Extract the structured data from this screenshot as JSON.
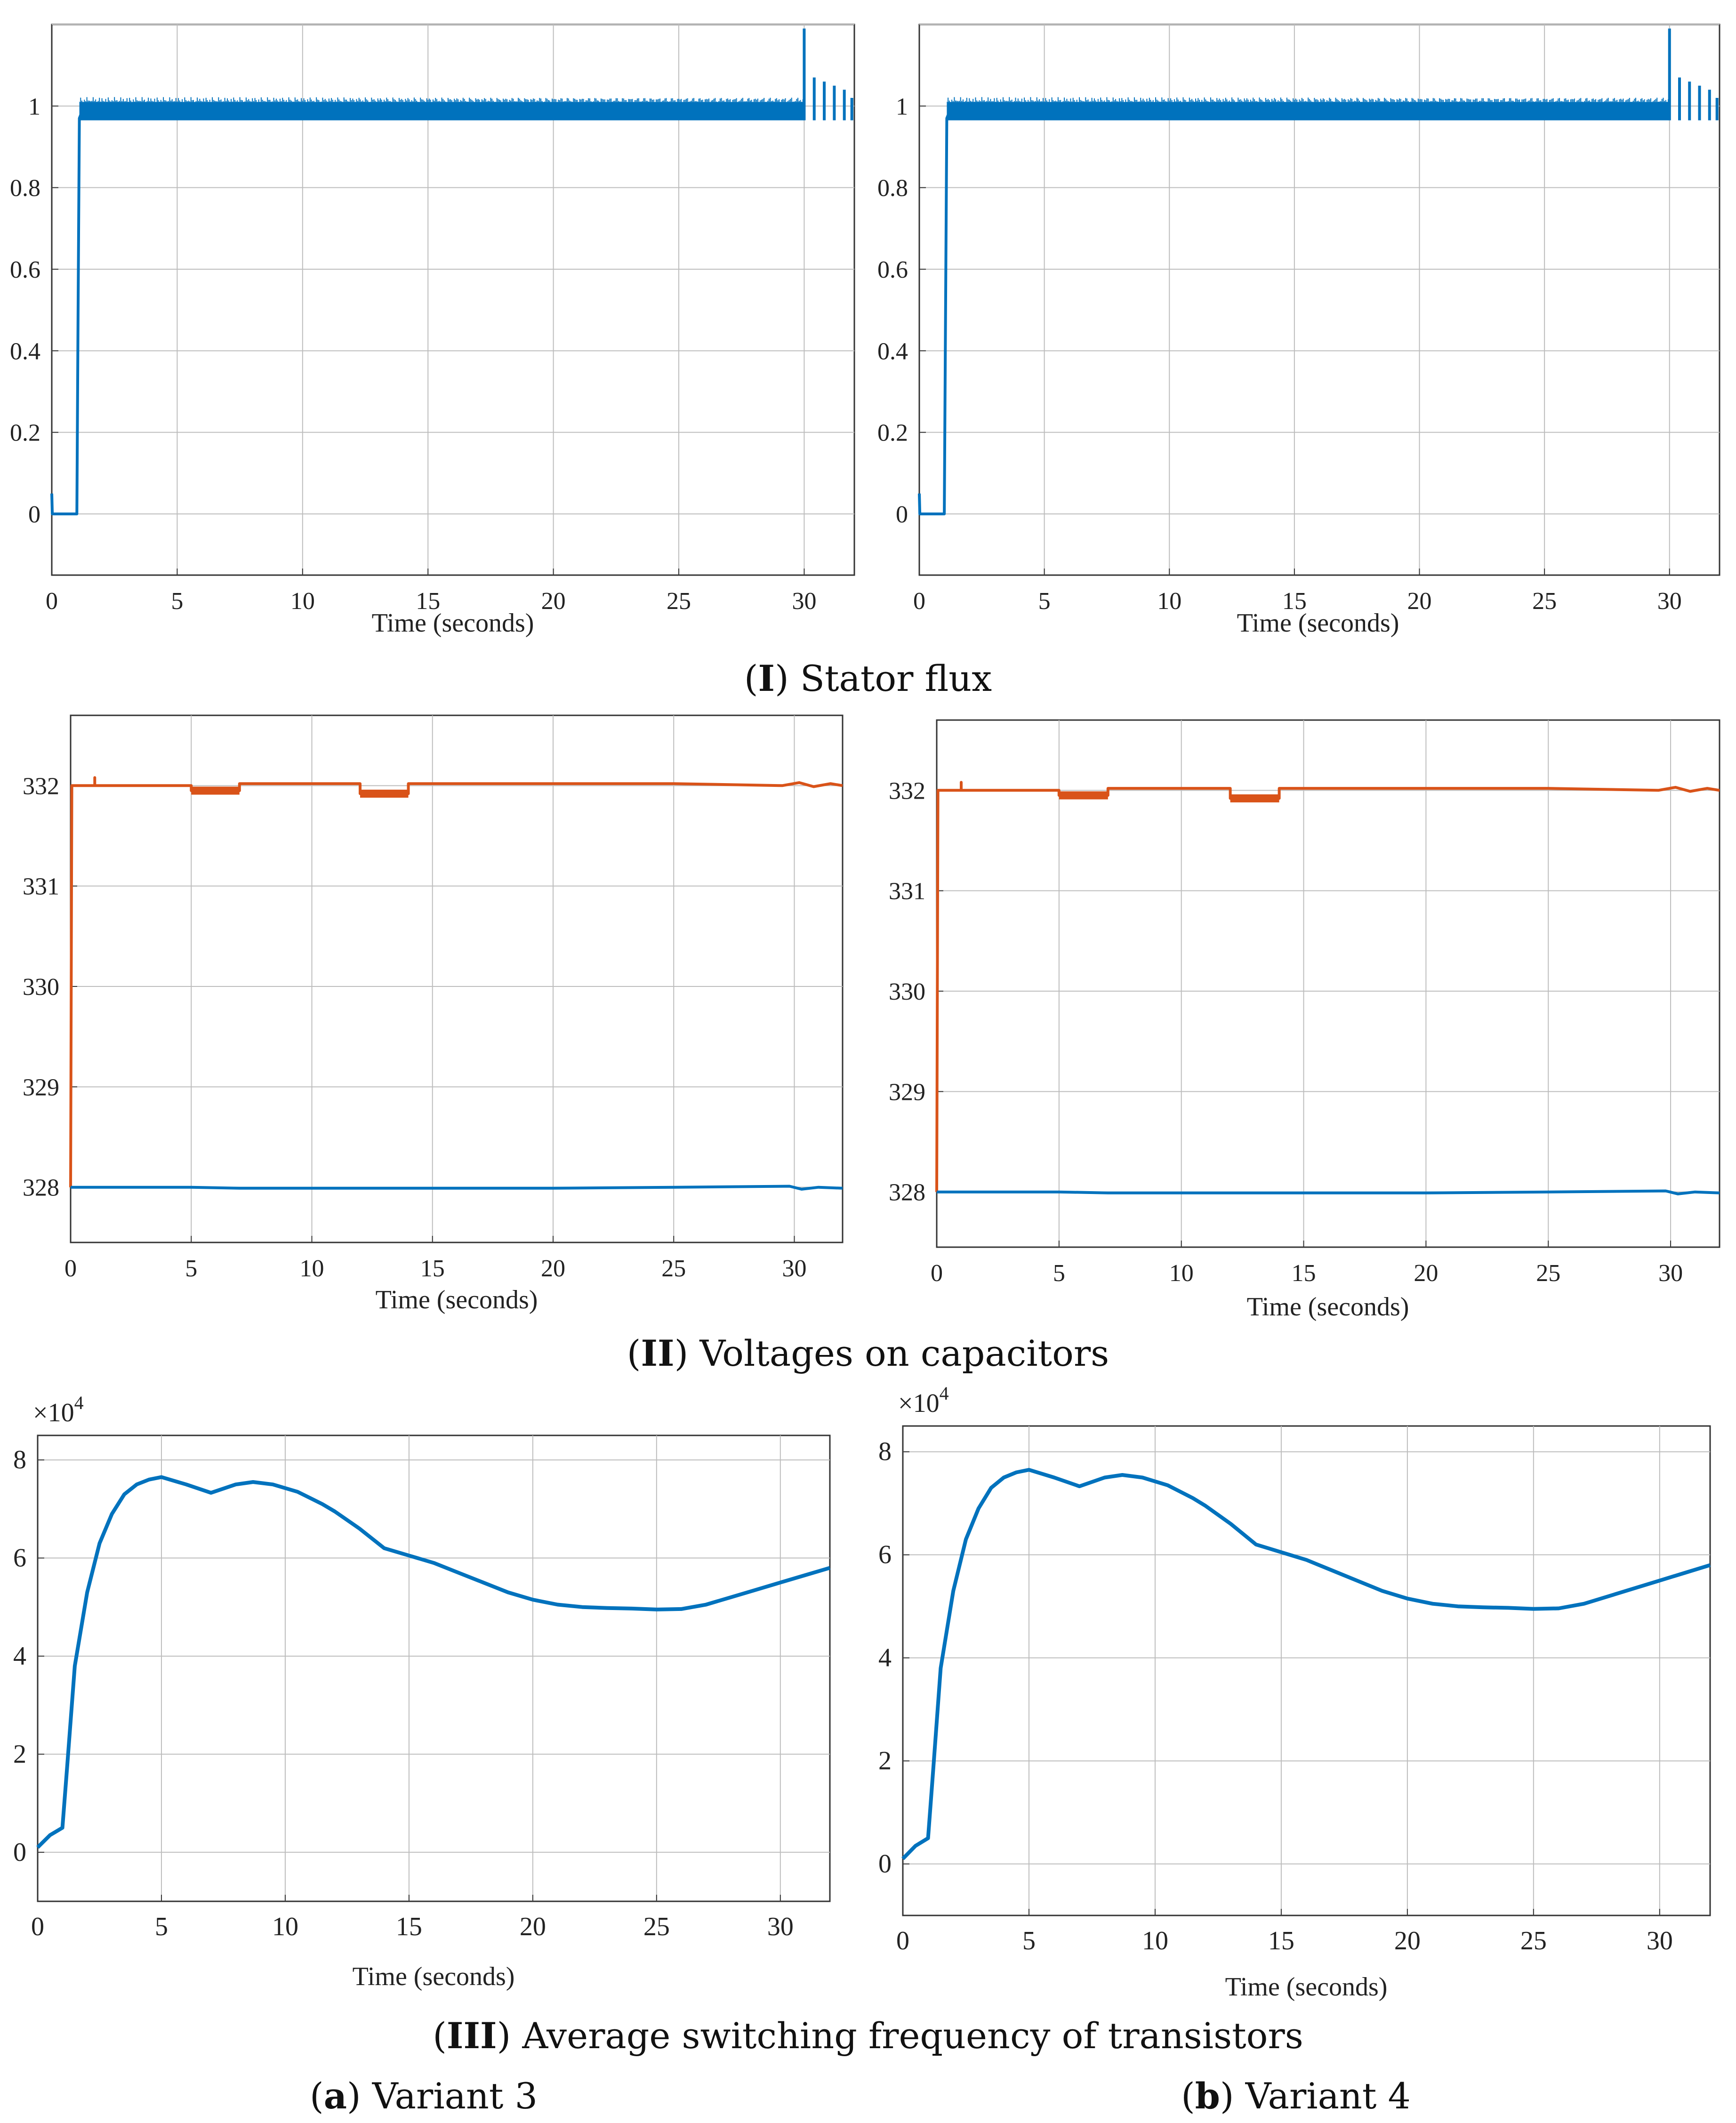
{
  "captions": {
    "row1": {
      "roman": "I",
      "text": " Stator flux"
    },
    "row2": {
      "roman": "II",
      "text": " Voltages on capacitors"
    },
    "row3": {
      "roman": "III",
      "text": " Average switching frequency of transistors"
    },
    "col_a": {
      "letter": "a",
      "text": " Variant 3"
    },
    "col_b": {
      "letter": "b",
      "text": " Variant 4"
    }
  },
  "colors": {
    "blue": "#0072BD",
    "orange": "#D95319",
    "grid": "#bdbdbd",
    "axis": "#333333"
  },
  "chart_data": [
    {
      "id": "flux_a",
      "type": "line",
      "xlabel": "Time (seconds)",
      "ylabel": "",
      "xlim": [
        0,
        32
      ],
      "ylim": [
        -0.15,
        1.2
      ],
      "xticks": [
        0,
        5,
        10,
        15,
        20,
        25,
        30
      ],
      "xtick_labels": [
        "0",
        "5",
        "10",
        "15",
        "20",
        "25",
        "30"
      ],
      "yticks": [
        0,
        0.2,
        0.4,
        0.6,
        0.8,
        1
      ],
      "ytick_labels": [
        "0",
        "0.2",
        "0.4",
        "0.6",
        "0.8",
        "1"
      ],
      "ygrid": [
        0,
        0.2,
        0.4,
        0.6,
        0.8,
        1,
        1.2
      ],
      "series": [
        {
          "color": "blue",
          "x": [
            0,
            0.02,
            0.05,
            1.0,
            1.05,
            1.1,
            1.2,
            30
          ],
          "y": [
            0.05,
            0.0,
            0.0,
            0.0,
            0.5,
            0.97,
            0.985,
            0.985
          ],
          "ripple": [
            1.1,
            30,
            0.965,
            1.01
          ],
          "spikes": [
            [
              30.0,
              1.19
            ],
            [
              30.4,
              1.07
            ],
            [
              30.8,
              1.06
            ],
            [
              31.2,
              1.05
            ],
            [
              31.6,
              1.04
            ],
            [
              31.9,
              1.02
            ]
          ]
        }
      ]
    },
    {
      "id": "flux_b",
      "type": "line",
      "xlabel": "Time (seconds)",
      "ylabel": "",
      "xlim": [
        0,
        32
      ],
      "ylim": [
        -0.15,
        1.2
      ],
      "xticks": [
        0,
        5,
        10,
        15,
        20,
        25,
        30
      ],
      "xtick_labels": [
        "0",
        "5",
        "10",
        "15",
        "20",
        "25",
        "30"
      ],
      "yticks": [
        0,
        0.2,
        0.4,
        0.6,
        0.8,
        1
      ],
      "ytick_labels": [
        "0",
        "0.2",
        "0.4",
        "0.6",
        "0.8",
        "1"
      ],
      "ygrid": [
        0,
        0.2,
        0.4,
        0.6,
        0.8,
        1,
        1.2
      ],
      "series": [
        {
          "color": "blue",
          "x": [
            0,
            0.02,
            0.05,
            1.0,
            1.05,
            1.1,
            1.2,
            30
          ],
          "y": [
            0.05,
            0.0,
            0.0,
            0.0,
            0.5,
            0.97,
            0.985,
            0.985
          ],
          "ripple": [
            1.1,
            30,
            0.965,
            1.01
          ],
          "spikes": [
            [
              30.0,
              1.19
            ],
            [
              30.4,
              1.07
            ],
            [
              30.8,
              1.06
            ],
            [
              31.2,
              1.05
            ],
            [
              31.6,
              1.04
            ],
            [
              31.9,
              1.02
            ]
          ]
        }
      ]
    },
    {
      "id": "volt_a",
      "type": "line",
      "xlabel": "Time (seconds)",
      "ylabel": "",
      "xlim": [
        0,
        32
      ],
      "ylim": [
        327.45,
        332.7
      ],
      "xticks": [
        0,
        5,
        10,
        15,
        20,
        25,
        30
      ],
      "xtick_labels": [
        "0",
        "5",
        "10",
        "15",
        "20",
        "25",
        "30"
      ],
      "yticks": [
        328,
        329,
        330,
        331,
        332
      ],
      "ytick_labels": [
        "328",
        "329",
        "330",
        "331",
        "332"
      ],
      "ygrid": [
        328,
        329,
        330,
        331,
        332
      ],
      "series": [
        {
          "color": "orange",
          "x": [
            0,
            0.05,
            1.0,
            1.0,
            1.0,
            5.0,
            5.0,
            7.0,
            7.0,
            12.0,
            12.0,
            14.0,
            14.0,
            20,
            25,
            29.5,
            30.2,
            30.8,
            31.5,
            32
          ],
          "y": [
            328,
            332,
            332,
            332.08,
            332,
            332,
            331.95,
            331.95,
            332.02,
            332.02,
            331.92,
            331.92,
            332.02,
            332.02,
            332.02,
            332.0,
            332.03,
            331.99,
            332.02,
            332.0
          ],
          "bands": [
            [
              5,
              7,
              331.91,
              331.99
            ],
            [
              12,
              14,
              331.88,
              331.96
            ]
          ]
        },
        {
          "color": "blue",
          "x": [
            0,
            5,
            7,
            10,
            15,
            20,
            25,
            29.8,
            30.3,
            31,
            32
          ],
          "y": [
            328.0,
            328.0,
            327.99,
            327.99,
            327.99,
            327.99,
            328.0,
            328.01,
            327.98,
            328.0,
            327.99
          ]
        }
      ]
    },
    {
      "id": "volt_b",
      "type": "line",
      "xlabel": "Time (seconds)",
      "ylabel": "",
      "xlim": [
        0,
        32
      ],
      "ylim": [
        327.45,
        332.7
      ],
      "xticks": [
        0,
        5,
        10,
        15,
        20,
        25,
        30
      ],
      "xtick_labels": [
        "0",
        "5",
        "10",
        "15",
        "20",
        "25",
        "30"
      ],
      "yticks": [
        328,
        329,
        330,
        331,
        332
      ],
      "ytick_labels": [
        "328",
        "329",
        "330",
        "331",
        "332"
      ],
      "ygrid": [
        328,
        329,
        330,
        331,
        332
      ],
      "series": [
        {
          "color": "orange",
          "x": [
            0,
            0.05,
            1.0,
            1.0,
            1.0,
            5.0,
            5.0,
            7.0,
            7.0,
            12.0,
            12.0,
            14.0,
            14.0,
            20,
            25,
            29.5,
            30.2,
            30.8,
            31.5,
            32
          ],
          "y": [
            328,
            332,
            332,
            332.08,
            332,
            332,
            331.95,
            331.95,
            332.02,
            332.02,
            331.92,
            331.92,
            332.02,
            332.02,
            332.02,
            332.0,
            332.03,
            331.99,
            332.02,
            332.0
          ],
          "bands": [
            [
              5,
              7,
              331.91,
              331.99
            ],
            [
              12,
              14,
              331.88,
              331.96
            ]
          ]
        },
        {
          "color": "blue",
          "x": [
            0,
            5,
            7,
            10,
            15,
            20,
            25,
            29.8,
            30.3,
            31,
            32
          ],
          "y": [
            328.0,
            328.0,
            327.99,
            327.99,
            327.99,
            327.99,
            328.0,
            328.01,
            327.98,
            328.0,
            327.99
          ]
        }
      ]
    },
    {
      "id": "freq_a",
      "type": "line",
      "xlabel": "Time (seconds)",
      "ylabel": "",
      "exponent": "4",
      "xlim": [
        0,
        32
      ],
      "ylim": [
        -1.0,
        8.5
      ],
      "xticks": [
        0,
        5,
        10,
        15,
        20,
        25,
        30
      ],
      "xtick_labels": [
        "0",
        "5",
        "10",
        "15",
        "20",
        "25",
        "30"
      ],
      "yticks": [
        0,
        2,
        4,
        6,
        8
      ],
      "ytick_labels": [
        "0",
        "2",
        "4",
        "6",
        "8"
      ],
      "ygrid": [
        0,
        2,
        4,
        6,
        8
      ],
      "series": [
        {
          "color": "blue",
          "x": [
            0,
            0.5,
            1.0,
            1.2,
            1.5,
            2.0,
            2.5,
            3.0,
            3.5,
            4.0,
            4.5,
            5.0,
            6.0,
            7.0,
            8.0,
            8.7,
            9.5,
            10.5,
            11.5,
            12.0,
            13.0,
            14.0,
            15.0,
            16.0,
            17.0,
            18.0,
            19.0,
            20.0,
            21.0,
            22.0,
            23.0,
            24.0,
            25.0,
            26.0,
            27.0,
            28.0,
            29.0,
            30.0,
            31.0,
            32.0
          ],
          "y": [
            0.1,
            0.35,
            0.5,
            1.8,
            3.8,
            5.3,
            6.3,
            6.9,
            7.3,
            7.5,
            7.6,
            7.65,
            7.5,
            7.33,
            7.5,
            7.55,
            7.5,
            7.35,
            7.1,
            6.95,
            6.6,
            6.2,
            6.05,
            5.9,
            5.7,
            5.5,
            5.3,
            5.15,
            5.05,
            5.0,
            4.98,
            4.97,
            4.95,
            4.96,
            5.05,
            5.2,
            5.35,
            5.5,
            5.65,
            5.8
          ]
        }
      ]
    },
    {
      "id": "freq_b",
      "type": "line",
      "xlabel": "Time (seconds)",
      "ylabel": "",
      "exponent": "4",
      "xlim": [
        0,
        32
      ],
      "ylim": [
        -1.0,
        8.5
      ],
      "xticks": [
        0,
        5,
        10,
        15,
        20,
        25,
        30
      ],
      "xtick_labels": [
        "0",
        "5",
        "10",
        "15",
        "20",
        "25",
        "30"
      ],
      "yticks": [
        0,
        2,
        4,
        6,
        8
      ],
      "ytick_labels": [
        "0",
        "2",
        "4",
        "6",
        "8"
      ],
      "ygrid": [
        0,
        2,
        4,
        6,
        8
      ],
      "series": [
        {
          "color": "blue",
          "x": [
            0,
            0.5,
            1.0,
            1.2,
            1.5,
            2.0,
            2.5,
            3.0,
            3.5,
            4.0,
            4.5,
            5.0,
            6.0,
            7.0,
            8.0,
            8.7,
            9.5,
            10.5,
            11.5,
            12.0,
            13.0,
            14.0,
            15.0,
            16.0,
            17.0,
            18.0,
            19.0,
            20.0,
            21.0,
            22.0,
            23.0,
            24.0,
            25.0,
            26.0,
            27.0,
            28.0,
            29.0,
            30.0,
            31.0,
            32.0
          ],
          "y": [
            0.1,
            0.35,
            0.5,
            1.8,
            3.8,
            5.3,
            6.3,
            6.9,
            7.3,
            7.5,
            7.6,
            7.65,
            7.5,
            7.33,
            7.5,
            7.55,
            7.5,
            7.35,
            7.1,
            6.95,
            6.6,
            6.2,
            6.05,
            5.9,
            5.7,
            5.5,
            5.3,
            5.15,
            5.05,
            5.0,
            4.98,
            4.97,
            4.95,
            4.96,
            5.05,
            5.2,
            5.35,
            5.5,
            5.65,
            5.8
          ]
        }
      ]
    }
  ]
}
